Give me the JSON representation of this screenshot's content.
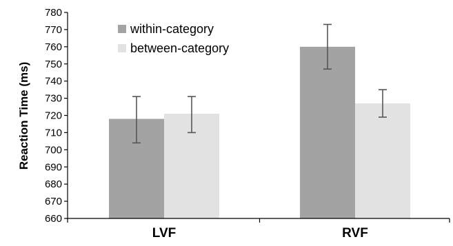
{
  "chart_data": {
    "type": "bar",
    "categories": [
      "LVF",
      "RVF"
    ],
    "series": [
      {
        "name": "within-category",
        "values": [
          718,
          760
        ],
        "error_low": [
          704,
          747
        ],
        "error_high": [
          731,
          773
        ],
        "color": "#a3a3a3"
      },
      {
        "name": "between-category",
        "values": [
          721,
          727
        ],
        "error_low": [
          710,
          719
        ],
        "error_high": [
          731,
          735
        ],
        "color": "#e2e2e2"
      }
    ],
    "title": "",
    "xlabel": "",
    "ylabel": "Reaction Time (ms)",
    "ylim": [
      660,
      780
    ],
    "yticks": [
      "660",
      "670",
      "680",
      "690",
      "700",
      "710",
      "720",
      "730",
      "740",
      "750",
      "760",
      "770",
      "780"
    ],
    "grid": false,
    "legend_position": "top-left",
    "axis_color": "#000000",
    "error_bar_color": "#555555"
  }
}
